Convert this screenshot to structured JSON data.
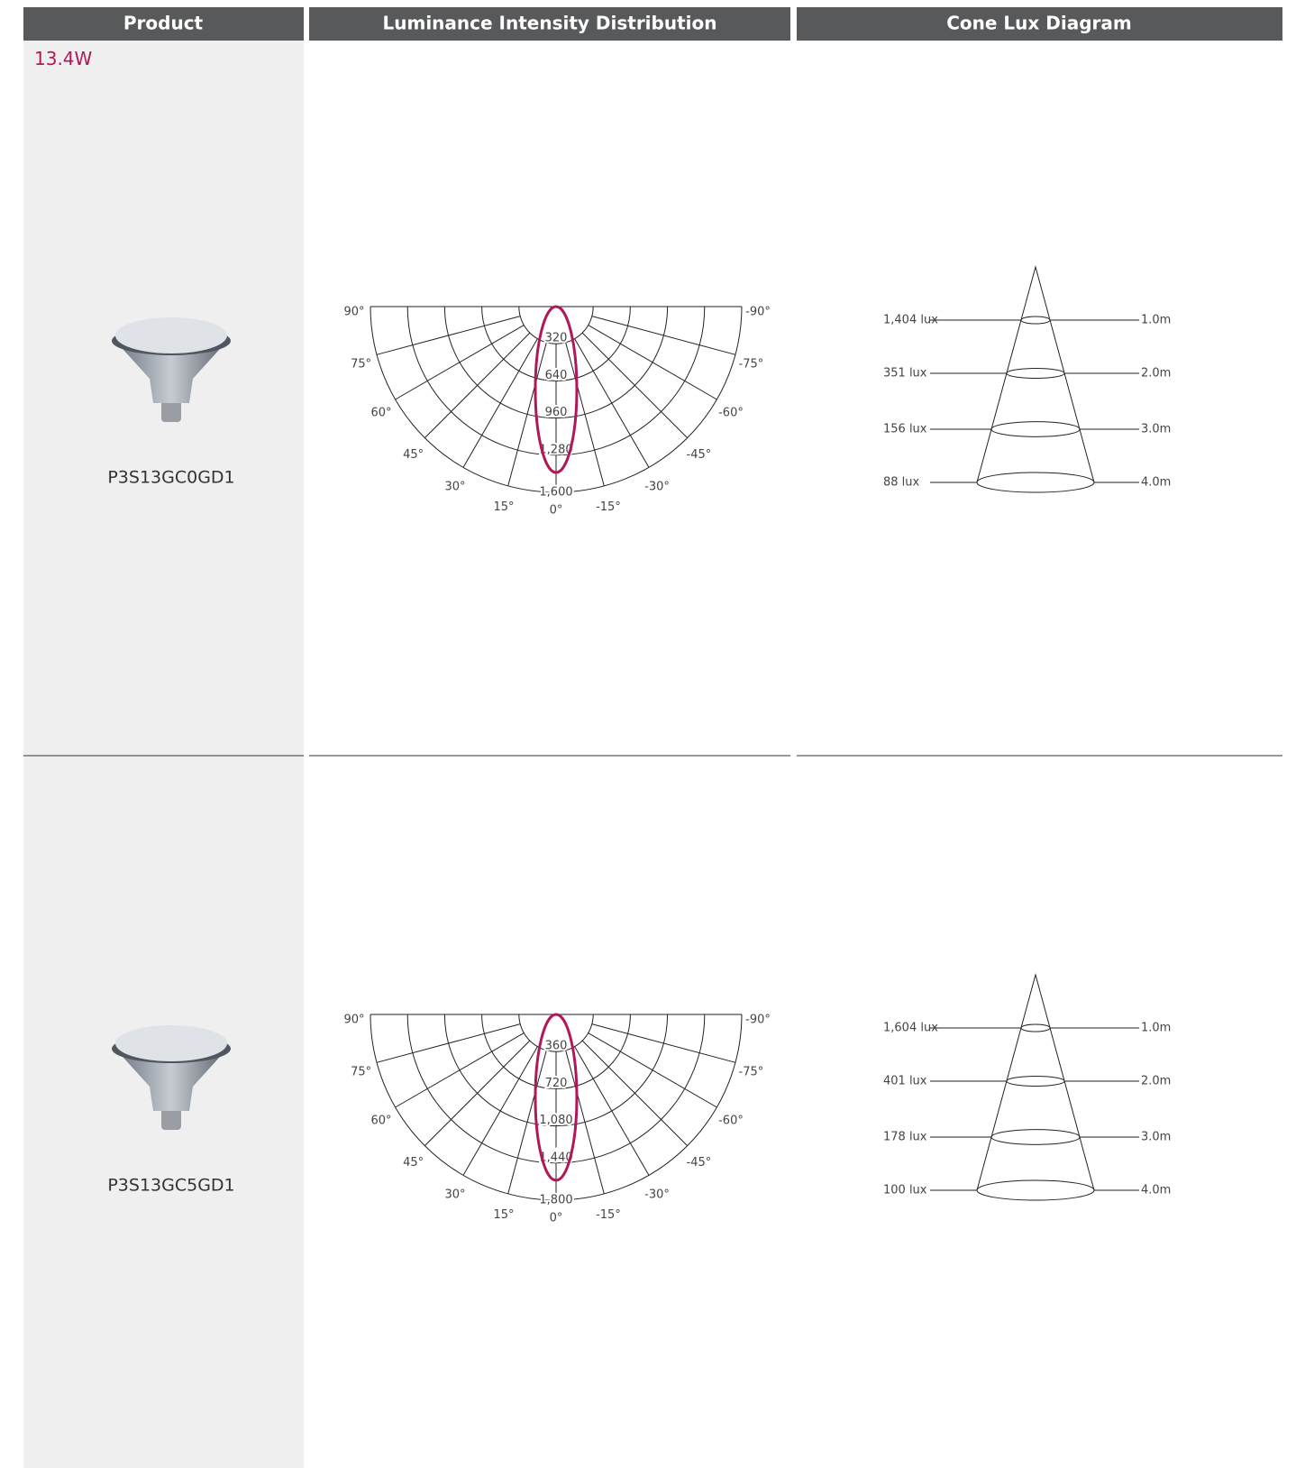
{
  "header": {
    "columns": [
      "Product",
      "Luminance Intensity Distribution",
      "Cone Lux Diagram"
    ]
  },
  "group": "13.4W",
  "rows": [
    {
      "product": "P3S13GC0GD1",
      "polar": {
        "angles_left": [
          "90°",
          "75°",
          "60°",
          "45°",
          "30°",
          "15°"
        ],
        "center": "0°",
        "angles_right": [
          "-90°",
          "-75°",
          "-60°",
          "-45°",
          "-30°",
          "-15°"
        ],
        "rings": [
          "320",
          "640",
          "960",
          "1,280",
          "1,600"
        ]
      },
      "cone": {
        "lux": [
          "1,404 lux",
          "351 lux",
          "156 lux",
          "88 lux"
        ],
        "distances": [
          "1.0m",
          "2.0m",
          "3.0m",
          "4.0m"
        ]
      }
    },
    {
      "product": "P3S13GC5GD1",
      "polar": {
        "angles_left": [
          "90°",
          "75°",
          "60°",
          "45°",
          "30°",
          "15°"
        ],
        "center": "0°",
        "angles_right": [
          "-90°",
          "-75°",
          "-60°",
          "-45°",
          "-30°",
          "-15°"
        ],
        "rings": [
          "360",
          "720",
          "1,080",
          "1,440",
          "1,800"
        ]
      },
      "cone": {
        "lux": [
          "1,604 lux",
          "401 lux",
          "178 lux",
          "100 lux"
        ],
        "distances": [
          "1.0m",
          "2.0m",
          "3.0m",
          "4.0m"
        ]
      }
    }
  ]
}
